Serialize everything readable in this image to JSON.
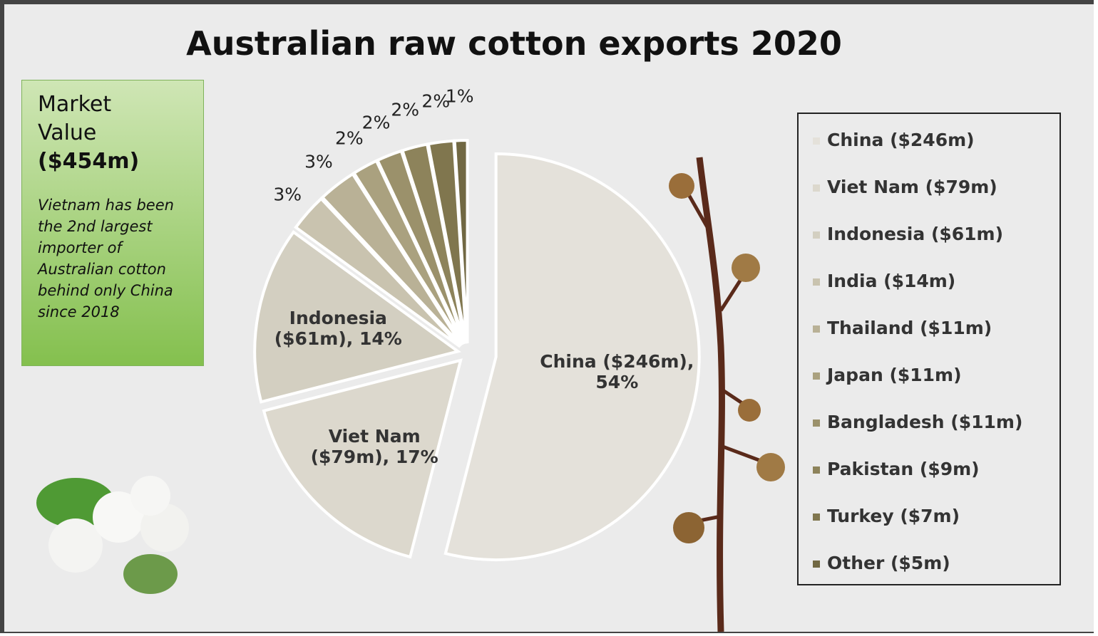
{
  "chart_data": {
    "type": "pie",
    "title": "Australian raw cotton exports 2020",
    "categories": [
      "China ($246m)",
      "Viet Nam ($79m)",
      "Indonesia ($61m)",
      "India ($14m)",
      "Thailand ($11m)",
      "Japan ($11m)",
      "Bangladesh ($11m)",
      "Pakistan ($9m)",
      "Turkey ($7m)",
      "Other ($5m)"
    ],
    "values": [
      54,
      17,
      14,
      3,
      3,
      2,
      2,
      2,
      2,
      1
    ],
    "value_labels": [
      "China ($246m), 54%",
      "Viet Nam ($79m), 17%",
      "Indonesia ($61m), 14%",
      "3%",
      "3%",
      "2%",
      "2%",
      "2%",
      "2%",
      "1%"
    ],
    "colors": [
      "#e4e1da",
      "#dcd8cd",
      "#d3cfc1",
      "#c9c3af",
      "#b9b196",
      "#aaa17f",
      "#9b916b",
      "#8d835b",
      "#80764e",
      "#716843"
    ],
    "legend": "right",
    "annotations": {
      "box_title": "Market Value",
      "box_value": "($454m)",
      "box_note": "Vietnam has been the 2nd largest importer of Australian cotton behind only China since 2018"
    }
  }
}
